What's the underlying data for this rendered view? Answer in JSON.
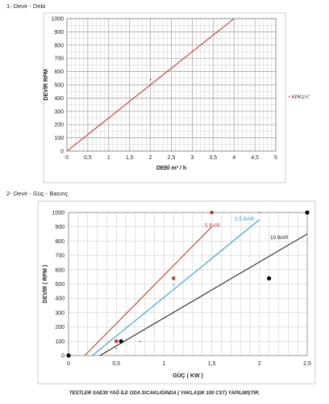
{
  "sections": {
    "s1_title": "1- Devir - Debi",
    "s2_title": "2- Devir - Güç - Basınç"
  },
  "footer_note": "TESTLER SAE30 YAĞ İLE ODA SICAKLIĞINDA ( YAKLAŞIK 100 CST) YAPILMIŞTIR.",
  "chart_data": [
    {
      "type": "line",
      "xlabel": "DEBİ m³ / h",
      "ylabel": "DEVİR RPM",
      "xlim": [
        0,
        5
      ],
      "ylim": [
        0,
        1000
      ],
      "x_ticks": [
        "0",
        "0,5",
        "1",
        "1,5",
        "2",
        "2,5",
        "3",
        "3,5",
        "4",
        "4,5",
        "5"
      ],
      "y_ticks": [
        "0",
        "100",
        "200",
        "300",
        "400",
        "500",
        "600",
        "700",
        "800",
        "900",
        "1000"
      ],
      "grid": true,
      "legend_position": "right",
      "colors": {
        "series": "#c0392b",
        "marker": "#c0392b"
      },
      "series": [
        {
          "name": "KPK1¼\"",
          "x": [
            0,
            4
          ],
          "y": [
            0,
            1000
          ]
        }
      ],
      "markers": [
        {
          "x": 2,
          "y": 540
        }
      ]
    },
    {
      "type": "line",
      "xlabel": "GÜÇ ( KW )",
      "ylabel": "DEVİR ( RPM )",
      "xlim": [
        0,
        2.5
      ],
      "ylim": [
        0,
        1000
      ],
      "x_ticks": [
        "0",
        "0,5",
        "1",
        "1,5",
        "2",
        "2,5"
      ],
      "y_ticks": [
        "0",
        "100",
        "200",
        "300",
        "400",
        "500",
        "600",
        "700",
        "800",
        "900",
        "1000"
      ],
      "grid": true,
      "series": [
        {
          "name": "5 BAR",
          "color": "#c0392b",
          "x": [
            0.17,
            1.5
          ],
          "y": [
            0,
            900
          ],
          "points": [
            [
              0.5,
              100
            ],
            [
              1.1,
              540
            ],
            [
              1.5,
              1000
            ]
          ]
        },
        {
          "name": "2,5 BAR",
          "color": "#2e9bd6",
          "x": [
            0.25,
            2.0
          ],
          "y": [
            0,
            950
          ],
          "points": [
            [
              0.5,
              50
            ],
            [
              0.75,
              100
            ],
            [
              1.1,
              495
            ],
            [
              2.0,
              1000
            ]
          ]
        },
        {
          "name": "10 BAR",
          "color": "#222222",
          "x": [
            0.33,
            2.5
          ],
          "y": [
            0,
            850
          ],
          "points": [
            [
              0,
              0
            ],
            [
              0.55,
              100
            ],
            [
              2.1,
              540
            ],
            [
              2.5,
              1000
            ]
          ]
        }
      ]
    }
  ]
}
